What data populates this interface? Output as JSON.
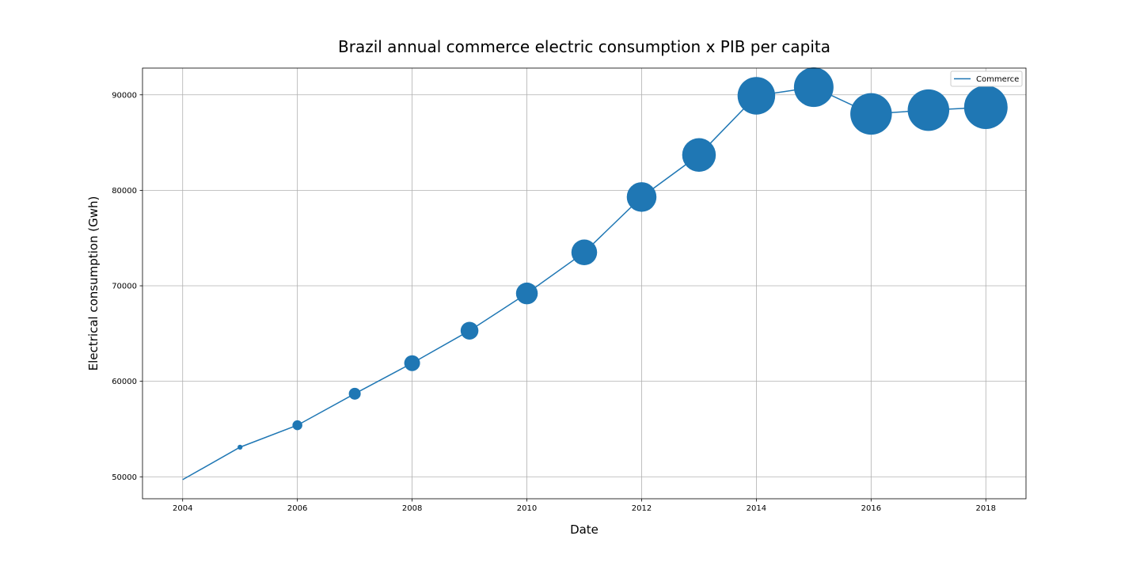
{
  "chart_data": {
    "type": "scatter",
    "title": "Brazil annual commerce electric consumption x PIB per capita",
    "xlabel": "Date",
    "ylabel": "Electrical consumption (Gwh)",
    "x": [
      2004,
      2005,
      2006,
      2007,
      2008,
      2009,
      2010,
      2011,
      2012,
      2013,
      2014,
      2015,
      2016,
      2017,
      2018
    ],
    "series": [
      {
        "name": "Commerce",
        "color": "#1f77b4",
        "values": [
          49700,
          53100,
          55400,
          58700,
          61900,
          65300,
          69200,
          73500,
          79300,
          83700,
          89900,
          90800,
          88000,
          88400,
          88700
        ],
        "bubble_size": [
          0,
          5,
          10,
          12,
          16,
          18,
          22,
          26,
          30,
          34,
          38,
          40,
          42,
          42,
          44
        ]
      }
    ],
    "xlim": [
      2003.3,
      2018.7
    ],
    "ylim": [
      47700,
      92800
    ],
    "xticks": [
      2004,
      2006,
      2008,
      2010,
      2012,
      2014,
      2016,
      2018
    ],
    "yticks": [
      50000,
      60000,
      70000,
      80000,
      90000
    ],
    "grid": true,
    "legend_position": "top-right"
  }
}
